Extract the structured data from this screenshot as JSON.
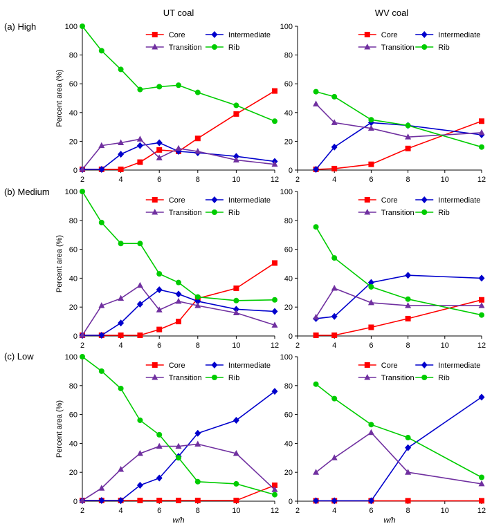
{
  "colors": {
    "Core": "#ff0000",
    "Intermediate": "#0000cc",
    "Transition": "#7030a0",
    "Rib": "#00cc00"
  },
  "markers": {
    "Core": "square",
    "Intermediate": "diamond",
    "Transition": "triangle",
    "Rib": "circle"
  },
  "columns": [
    "UT coal",
    "WV coal"
  ],
  "rows": [
    "(a) High",
    "(b) Medium",
    "(c) Low"
  ],
  "chart_data": [
    {
      "type": "line",
      "panel": "UT coal (a) High",
      "xlabel": "",
      "ylabel": "Percent area (%)",
      "xlim": [
        2,
        12
      ],
      "ylim": [
        0,
        100
      ],
      "xticks": [
        "2",
        "4",
        "6",
        "8",
        "10",
        "12"
      ],
      "yticks": [
        "0",
        "20",
        "40",
        "60",
        "80",
        "100"
      ],
      "legend": "top-right",
      "series": [
        {
          "name": "Core",
          "x": [
            2,
            3,
            4,
            5,
            6,
            7,
            8,
            10,
            12
          ],
          "y": [
            0.5,
            0.5,
            0.5,
            5.5,
            14,
            13,
            22,
            39,
            55
          ]
        },
        {
          "name": "Intermediate",
          "x": [
            2,
            3,
            4,
            5,
            6,
            7,
            8,
            10,
            12
          ],
          "y": [
            0.5,
            0.5,
            11,
            17,
            19,
            13,
            12,
            9.5,
            6
          ]
        },
        {
          "name": "Transition",
          "x": [
            2,
            3,
            4,
            5,
            6,
            7,
            8,
            10,
            12
          ],
          "y": [
            0.5,
            17,
            19,
            21.5,
            8.5,
            15,
            13,
            7,
            4
          ]
        },
        {
          "name": "Rib",
          "x": [
            2,
            3,
            4,
            5,
            6,
            7,
            8,
            10,
            12
          ],
          "y": [
            100,
            83,
            70,
            56,
            58,
            59,
            54,
            45,
            34
          ]
        }
      ]
    },
    {
      "type": "line",
      "panel": "WV coal (a) High",
      "xlabel": "",
      "ylabel": "",
      "xlim": [
        2,
        12
      ],
      "ylim": [
        0,
        100
      ],
      "xticks": [
        "2",
        "4",
        "6",
        "8",
        "10",
        "12"
      ],
      "yticks": [
        "0",
        "20",
        "40",
        "60",
        "80",
        "100"
      ],
      "legend": "top-right",
      "series": [
        {
          "name": "Core",
          "x": [
            3,
            4,
            6,
            8,
            12
          ],
          "y": [
            0.5,
            1,
            4,
            15,
            34
          ]
        },
        {
          "name": "Intermediate",
          "x": [
            3,
            4,
            6,
            8,
            12
          ],
          "y": [
            0.5,
            16,
            33,
            31,
            24.5
          ]
        },
        {
          "name": "Transition",
          "x": [
            3,
            4,
            6,
            8,
            12
          ],
          "y": [
            46,
            33,
            29,
            23,
            26
          ]
        },
        {
          "name": "Rib",
          "x": [
            3,
            4,
            6,
            8,
            12
          ],
          "y": [
            54.5,
            51,
            35,
            31,
            16
          ]
        }
      ]
    },
    {
      "type": "line",
      "panel": "UT coal (b) Medium",
      "xlabel": "",
      "ylabel": "Percent area (%)",
      "xlim": [
        2,
        12
      ],
      "ylim": [
        0,
        100
      ],
      "xticks": [
        "2",
        "4",
        "6",
        "8",
        "10",
        "12"
      ],
      "yticks": [
        "0",
        "20",
        "40",
        "60",
        "80",
        "100"
      ],
      "legend": "top-right",
      "series": [
        {
          "name": "Core",
          "x": [
            2,
            3,
            4,
            5,
            6,
            7,
            8,
            10,
            12
          ],
          "y": [
            0.5,
            0.5,
            0.5,
            0.5,
            4.5,
            10,
            26,
            33,
            50.5
          ]
        },
        {
          "name": "Intermediate",
          "x": [
            2,
            3,
            4,
            5,
            6,
            7,
            8,
            10,
            12
          ],
          "y": [
            0.5,
            0.5,
            9,
            22,
            32,
            29,
            24,
            18.5,
            17
          ]
        },
        {
          "name": "Transition",
          "x": [
            2,
            3,
            4,
            5,
            6,
            7,
            8,
            10,
            12
          ],
          "y": [
            0.5,
            21,
            26,
            35,
            18,
            24,
            21,
            16,
            7.5
          ]
        },
        {
          "name": "Rib",
          "x": [
            2,
            3,
            4,
            5,
            6,
            7,
            8,
            10,
            12
          ],
          "y": [
            100,
            78.5,
            64,
            64,
            43,
            37,
            27,
            24.5,
            25
          ]
        }
      ]
    },
    {
      "type": "line",
      "panel": "WV coal (b) Medium",
      "xlabel": "",
      "ylabel": "",
      "xlim": [
        2,
        12
      ],
      "ylim": [
        0,
        100
      ],
      "xticks": [
        "2",
        "4",
        "6",
        "8",
        "10",
        "12"
      ],
      "yticks": [
        "0",
        "20",
        "40",
        "60",
        "80",
        "100"
      ],
      "legend": "top-right",
      "series": [
        {
          "name": "Core",
          "x": [
            3,
            4,
            6,
            8,
            12
          ],
          "y": [
            0.5,
            0.5,
            6,
            12,
            25
          ]
        },
        {
          "name": "Intermediate",
          "x": [
            3,
            4,
            6,
            8,
            12
          ],
          "y": [
            12,
            13.5,
            37,
            42,
            40
          ]
        },
        {
          "name": "Transition",
          "x": [
            3,
            4,
            6,
            8,
            12
          ],
          "y": [
            13,
            33,
            23,
            21,
            21
          ]
        },
        {
          "name": "Rib",
          "x": [
            3,
            4,
            6,
            8,
            12
          ],
          "y": [
            75.5,
            54,
            34,
            25.5,
            14.5
          ]
        }
      ]
    },
    {
      "type": "line",
      "panel": "UT coal (c) Low",
      "xlabel": "w/h",
      "ylabel": "Percent area (%)",
      "xlim": [
        2,
        12
      ],
      "ylim": [
        0,
        100
      ],
      "xticks": [
        "2",
        "4",
        "6",
        "8",
        "10",
        "12"
      ],
      "yticks": [
        "0",
        "20",
        "40",
        "60",
        "80",
        "100"
      ],
      "legend": "top-right",
      "series": [
        {
          "name": "Core",
          "x": [
            2,
            3,
            4,
            5,
            6,
            7,
            8,
            10,
            12
          ],
          "y": [
            0.5,
            0.5,
            0.5,
            0.5,
            0.5,
            0.5,
            0.5,
            0.5,
            11
          ]
        },
        {
          "name": "Intermediate",
          "x": [
            2,
            3,
            4,
            5,
            6,
            7,
            8,
            10,
            12
          ],
          "y": [
            0.5,
            0.5,
            0.5,
            11,
            16,
            31,
            47,
            56,
            76
          ]
        },
        {
          "name": "Transition",
          "x": [
            2,
            3,
            4,
            5,
            6,
            7,
            8,
            10,
            12
          ],
          "y": [
            0.5,
            9,
            22,
            33,
            38,
            38,
            39.5,
            33,
            8
          ]
        },
        {
          "name": "Rib",
          "x": [
            2,
            3,
            4,
            5,
            6,
            7,
            8,
            10,
            12
          ],
          "y": [
            100,
            90,
            78,
            56,
            46,
            30,
            13.5,
            12,
            4.5
          ]
        }
      ]
    },
    {
      "type": "line",
      "panel": "WV coal (c) Low",
      "xlabel": "w/h",
      "ylabel": "",
      "xlim": [
        2,
        12
      ],
      "ylim": [
        0,
        100
      ],
      "xticks": [
        "2",
        "4",
        "6",
        "8",
        "10",
        "12"
      ],
      "yticks": [
        "0",
        "20",
        "40",
        "60",
        "80",
        "100"
      ],
      "legend": "top-right",
      "series": [
        {
          "name": "Core",
          "x": [
            3,
            4,
            6,
            8,
            12
          ],
          "y": [
            0.3,
            0.3,
            0.3,
            0.3,
            0.3
          ]
        },
        {
          "name": "Intermediate",
          "x": [
            3,
            4,
            6,
            8,
            12
          ],
          "y": [
            0.3,
            0.3,
            0.3,
            37,
            72
          ]
        },
        {
          "name": "Transition",
          "x": [
            3,
            4,
            6,
            8,
            12
          ],
          "y": [
            20,
            30,
            47.5,
            20,
            12
          ]
        },
        {
          "name": "Rib",
          "x": [
            3,
            4,
            6,
            8,
            12
          ],
          "y": [
            81,
            71,
            53,
            44,
            16.5
          ]
        }
      ]
    }
  ]
}
